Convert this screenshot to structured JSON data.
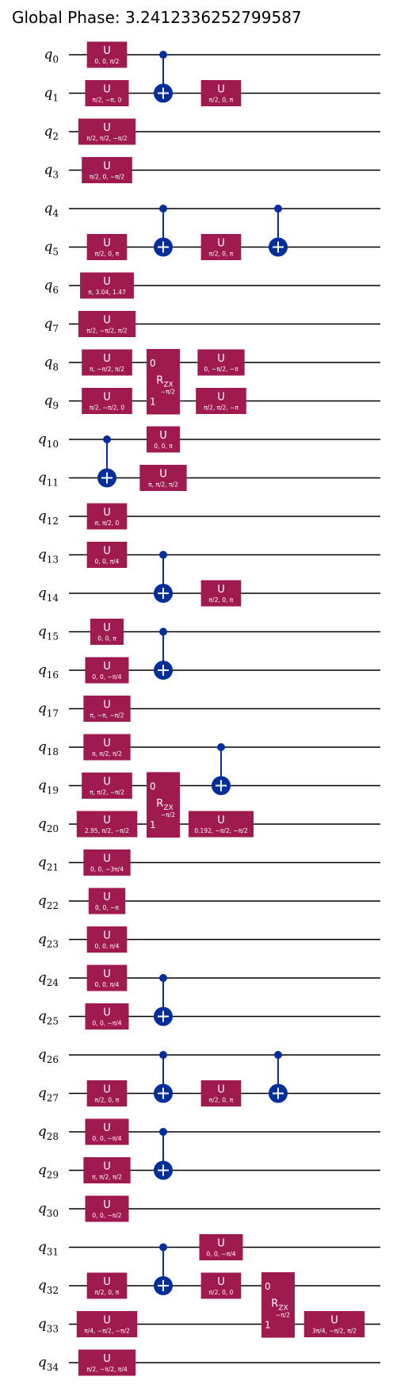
{
  "title": "Global Phase: 3.2412336252799587",
  "colors": {
    "gate": "#9e1a4f",
    "control": "#002d9c",
    "wire": "#000000",
    "gate_text": "#ffffff"
  },
  "qubits": [
    "0",
    "1",
    "2",
    "3",
    "4",
    "5",
    "6",
    "7",
    "8",
    "9",
    "10",
    "11",
    "12",
    "13",
    "14",
    "15",
    "16",
    "17",
    "18",
    "19",
    "20",
    "21",
    "22",
    "23",
    "24",
    "25",
    "26",
    "27",
    "28",
    "29",
    "30",
    "31",
    "32",
    "33",
    "34"
  ],
  "u_gates": [
    {
      "q": 0,
      "col": 1,
      "label": "U",
      "params": "0, 0, π/2"
    },
    {
      "q": 1,
      "col": 1,
      "label": "U",
      "params": "π/2, −π, 0"
    },
    {
      "q": 1,
      "col": 3,
      "label": "U",
      "params": "π/2, 0, π"
    },
    {
      "q": 2,
      "col": 1,
      "label": "U",
      "params": "π/2, π/2, −π/2"
    },
    {
      "q": 3,
      "col": 1,
      "label": "U",
      "params": "π/2, 0, −π/2"
    },
    {
      "q": 5,
      "col": 1,
      "label": "U",
      "params": "π/2, 0, π"
    },
    {
      "q": 5,
      "col": 3,
      "label": "U",
      "params": "π/2, 0, π"
    },
    {
      "q": 6,
      "col": 1,
      "label": "U",
      "params": "π, 3.04, 1.47"
    },
    {
      "q": 7,
      "col": 1,
      "label": "U",
      "params": "π/2, −π/2, π/2"
    },
    {
      "q": 8,
      "col": 1,
      "label": "U",
      "params": "π, −π/2, π/2"
    },
    {
      "q": 8,
      "col": 3,
      "label": "U",
      "params": "0, −π/2, −π"
    },
    {
      "q": 9,
      "col": 1,
      "label": "U",
      "params": "π/2, −π/2, 0"
    },
    {
      "q": 9,
      "col": 3,
      "label": "U",
      "params": "π/2, π/2, −π"
    },
    {
      "q": 10,
      "col": 2,
      "label": "U",
      "params": "0, 0, π"
    },
    {
      "q": 11,
      "col": 2,
      "label": "U",
      "params": "π, π/2, π/2"
    },
    {
      "q": 12,
      "col": 1,
      "label": "U",
      "params": "π, π/2, 0"
    },
    {
      "q": 13,
      "col": 1,
      "label": "U",
      "params": "0, 0, π/4"
    },
    {
      "q": 14,
      "col": 3,
      "label": "U",
      "params": "π/2, 0, π"
    },
    {
      "q": 15,
      "col": 1,
      "label": "U",
      "params": "0, 0, π"
    },
    {
      "q": 16,
      "col": 1,
      "label": "U",
      "params": "0, 0, −π/4"
    },
    {
      "q": 17,
      "col": 1,
      "label": "U",
      "params": "π, −π, −π/2"
    },
    {
      "q": 18,
      "col": 1,
      "label": "U",
      "params": "π, π/2, π/2"
    },
    {
      "q": 19,
      "col": 1,
      "label": "U",
      "params": "π, π/2, −π/2"
    },
    {
      "q": 20,
      "col": 1,
      "label": "U",
      "params": "2.95, π/2, −π/2"
    },
    {
      "q": 20,
      "col": 3,
      "label": "U",
      "params": "0.192, −π/2, −π/2"
    },
    {
      "q": 21,
      "col": 1,
      "label": "U",
      "params": "0, 0, −3π/4"
    },
    {
      "q": 22,
      "col": 1,
      "label": "U",
      "params": "0, 0, −π"
    },
    {
      "q": 23,
      "col": 1,
      "label": "U",
      "params": "0, 0, π/4"
    },
    {
      "q": 24,
      "col": 1,
      "label": "U",
      "params": "0, 0, π/4"
    },
    {
      "q": 25,
      "col": 1,
      "label": "U",
      "params": "0, 0, −π/4"
    },
    {
      "q": 27,
      "col": 1,
      "label": "U",
      "params": "π/2, 0, π"
    },
    {
      "q": 27,
      "col": 3,
      "label": "U",
      "params": "π/2, 0, π"
    },
    {
      "q": 28,
      "col": 1,
      "label": "U",
      "params": "0, 0, −π/4"
    },
    {
      "q": 29,
      "col": 1,
      "label": "U",
      "params": "π, π/2, π/2"
    },
    {
      "q": 30,
      "col": 1,
      "label": "U",
      "params": "0, 0, −π/2"
    },
    {
      "q": 31,
      "col": 3,
      "label": "U",
      "params": "0, 0, −π/4"
    },
    {
      "q": 32,
      "col": 1,
      "label": "U",
      "params": "π/2, 0, π"
    },
    {
      "q": 32,
      "col": 3,
      "label": "U",
      "params": "π/2, 0, 0"
    },
    {
      "q": 33,
      "col": 1,
      "label": "U",
      "params": "π/4, −π/2, −π/2"
    },
    {
      "q": 33,
      "col": 5,
      "label": "U",
      "params": "3π/4, −π/2, π/2"
    },
    {
      "q": 34,
      "col": 1,
      "label": "U",
      "params": "π/2, −π/2, π/4"
    }
  ],
  "cx_gates": [
    {
      "control": 0,
      "target": 1,
      "col": 2
    },
    {
      "control": 4,
      "target": 5,
      "col": 2
    },
    {
      "control": 4,
      "target": 5,
      "col": 4
    },
    {
      "control": 10,
      "target": 11,
      "col": 1
    },
    {
      "control": 13,
      "target": 14,
      "col": 2
    },
    {
      "control": 15,
      "target": 16,
      "col": 2
    },
    {
      "control": 18,
      "target": 19,
      "col": 3
    },
    {
      "control": 24,
      "target": 25,
      "col": 2
    },
    {
      "control": 26,
      "target": 27,
      "col": 2
    },
    {
      "control": 26,
      "target": 27,
      "col": 4
    },
    {
      "control": 28,
      "target": 29,
      "col": 2
    },
    {
      "control": 31,
      "target": 32,
      "col": 2
    }
  ],
  "rzx_gates": [
    {
      "q_top": 8,
      "q_bot": 9,
      "col": 2,
      "label": "R",
      "sub": "ZX",
      "param": "−π/2",
      "top_index": "0",
      "bot_index": "1"
    },
    {
      "q_top": 19,
      "q_bot": 20,
      "col": 2,
      "label": "R",
      "sub": "ZX",
      "param": "−π/2",
      "top_index": "0",
      "bot_index": "1"
    },
    {
      "q_top": 32,
      "q_bot": 33,
      "col": 4,
      "label": "R",
      "sub": "ZX",
      "param": "−π/2",
      "top_index": "0",
      "bot_index": "1"
    }
  ]
}
